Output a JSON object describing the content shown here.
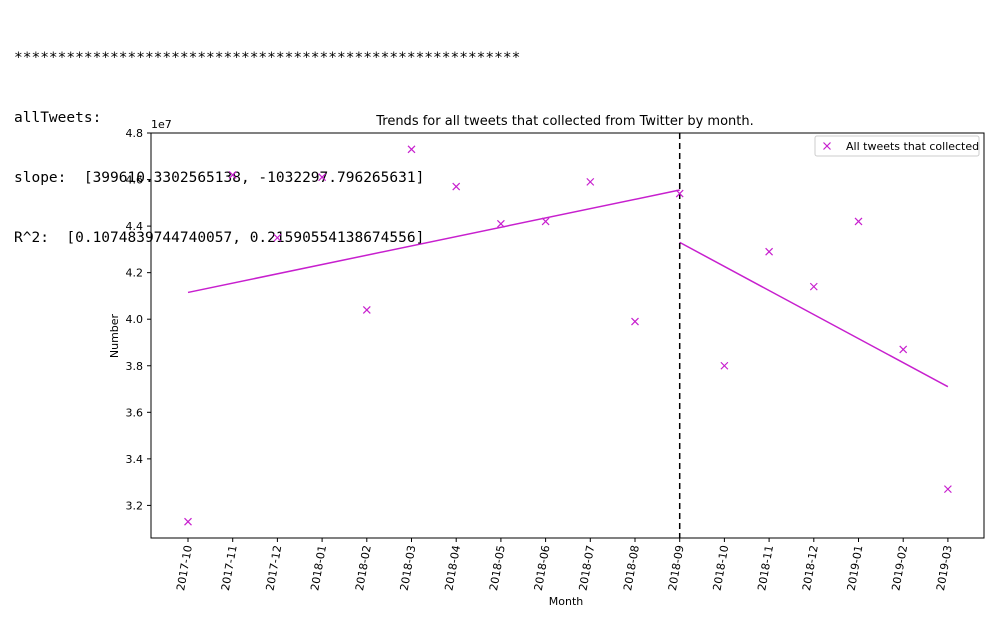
{
  "console": {
    "stars": "**********************************************************",
    "name_line": "allTweets:",
    "slope_line": "slope:  [399610.3302565138, -1032297.796265631]",
    "r2_line": "R^2:  [0.1074839744740057, 0.21590554138674556]"
  },
  "chart_data": {
    "type": "scatter",
    "title": "Trends for all tweets that collected from Twitter by month.",
    "xlabel": "Month",
    "ylabel": "Number",
    "y_scale_label": "1e7",
    "categories": [
      "2017-10",
      "2017-11",
      "2017-12",
      "2018-01",
      "2018-02",
      "2018-03",
      "2018-04",
      "2018-05",
      "2018-06",
      "2018-07",
      "2018-08",
      "2018-09",
      "2018-10",
      "2018-11",
      "2018-12",
      "2019-01",
      "2019-02",
      "2019-03"
    ],
    "y_ticks": [
      "3.2",
      "3.4",
      "3.6",
      "3.8",
      "4.0",
      "4.2",
      "4.4",
      "4.6",
      "4.8"
    ],
    "ylim": [
      3.06,
      4.8
    ],
    "series": [
      {
        "name": "All tweets that collected",
        "marker": "x",
        "color": "#c71fce",
        "values": [
          3.13,
          4.62,
          4.35,
          4.61,
          4.04,
          4.73,
          4.57,
          4.41,
          4.42,
          4.59,
          3.99,
          4.54,
          3.8,
          4.29,
          4.14,
          4.42,
          3.87,
          3.27
        ]
      }
    ],
    "trend_lines": [
      {
        "x_start": "2017-10",
        "x_end": "2018-09",
        "y_start": 4.115,
        "y_end": 4.555
      },
      {
        "x_start": "2018-09",
        "x_end": "2019-03",
        "y_start": 4.33,
        "y_end": 3.71
      }
    ],
    "vline_at": "2018-09",
    "legend_location": "top-right",
    "grid": false
  }
}
